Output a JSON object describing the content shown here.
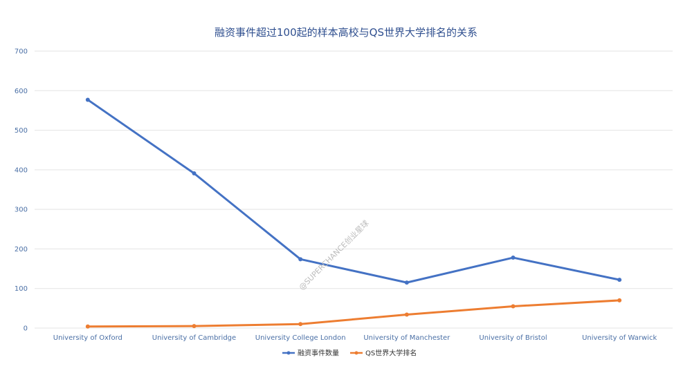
{
  "chart_data": {
    "type": "line",
    "title": "融资事件超过100起的样本高校与QS世界大学排名的关系",
    "categories": [
      "University of Oxford",
      "University of Cambridge",
      "University College London",
      "University of Manchester",
      "University of Bristol",
      "University of Warwick"
    ],
    "series": [
      {
        "name": "融资事件数量",
        "values": [
          577,
          391,
          174,
          115,
          178,
          122
        ],
        "color": "#4472C4"
      },
      {
        "name": "QS世界大学排名",
        "values": [
          4,
          5,
          10,
          34,
          55,
          70
        ],
        "color": "#ED7D31"
      }
    ],
    "ylim": [
      0,
      700
    ],
    "yticks": [
      0,
      100,
      200,
      300,
      400,
      500,
      600,
      700
    ],
    "grid": true,
    "legend_position": "bottom"
  },
  "watermark": "@SUPERCHANCE创业星球"
}
